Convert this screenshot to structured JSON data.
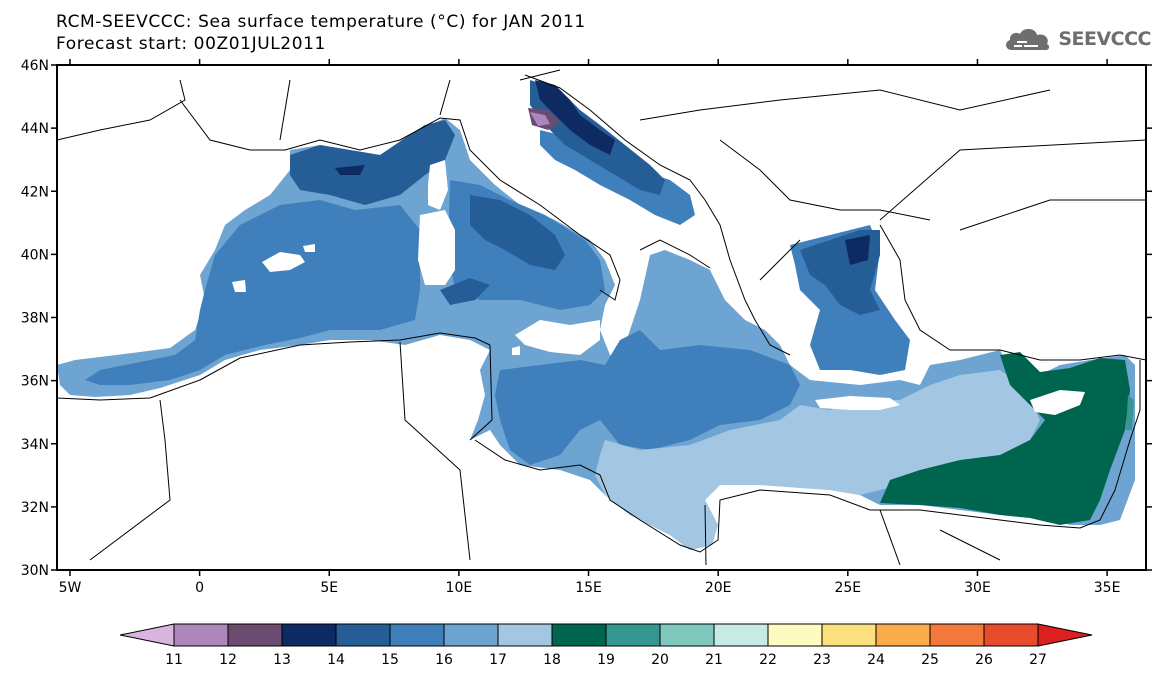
{
  "title": {
    "line1": "RCM-SEEVCCC: Sea surface temperature (°C) for JAN 2011",
    "line2": "Forecast start: 00Z01JUL2011"
  },
  "logo": {
    "text": "SEEVCCC",
    "icon": "cloud-icon"
  },
  "map": {
    "lon_range": [
      -5.5,
      36.5
    ],
    "lat_range": [
      30,
      46
    ],
    "lat_labels": [
      "46N",
      "44N",
      "42N",
      "40N",
      "38N",
      "36N",
      "34N",
      "32N",
      "30N"
    ],
    "lon_labels": [
      "5W",
      "0",
      "5E",
      "10E",
      "15E",
      "20E",
      "25E",
      "30E",
      "35E"
    ]
  },
  "legend": {
    "labels": [
      "11",
      "12",
      "13",
      "14",
      "15",
      "16",
      "17",
      "18",
      "19",
      "20",
      "21",
      "22",
      "23",
      "24",
      "25",
      "26",
      "27"
    ],
    "colors": [
      "#d7b5dc",
      "#ad86bc",
      "#6b4b70",
      "#0d2a63",
      "#255d96",
      "#3f80bc",
      "#6ea4d2",
      "#a3c7e2",
      "#00654f",
      "#35978f",
      "#7fc8bd",
      "#c6eae4",
      "#fffac0",
      "#fde07e",
      "#f9ad4b",
      "#f2793b",
      "#e84a2c",
      "#dc1f1f"
    ]
  },
  "colors": {
    "t14": "#0d2a63",
    "t15": "#255d96",
    "t16": "#3f80bc",
    "t17": "#6ea4d2",
    "t18": "#a3c7e2",
    "t19": "#00654f",
    "t20": "#35978f",
    "t13": "#6b4b70",
    "t12": "#ad86bc"
  }
}
